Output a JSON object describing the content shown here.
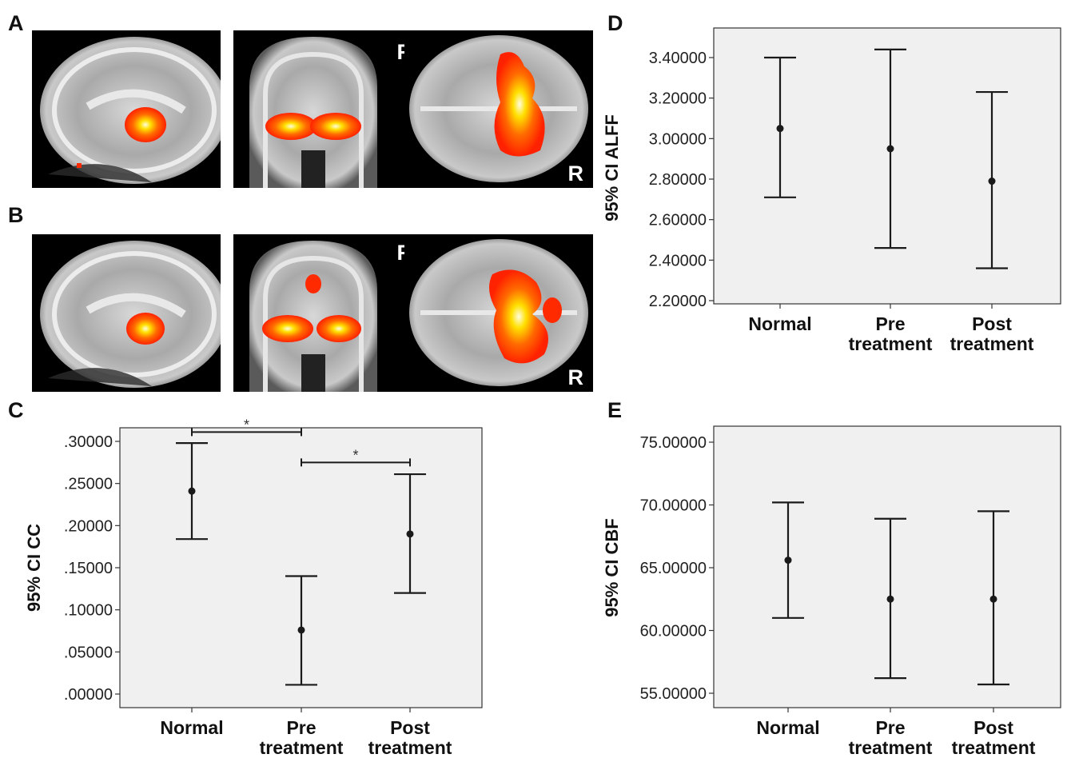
{
  "panels": {
    "A": {
      "letter": "A"
    },
    "B": {
      "letter": "B"
    },
    "C": {
      "letter": "C"
    },
    "D": {
      "letter": "D"
    },
    "E": {
      "letter": "E"
    }
  },
  "brain_images": {
    "right_marker": "R",
    "rows": [
      {
        "label": "A",
        "views": [
          "sagittal",
          "coronal",
          "axial"
        ]
      },
      {
        "label": "B",
        "views": [
          "sagittal",
          "coronal",
          "axial"
        ]
      }
    ]
  },
  "colors": {
    "plot_bg": "#f0f0f0",
    "ink": "#1a1a1a",
    "activation_red": "#ff2a00",
    "activation_yellow": "#ffe000"
  },
  "chart_data": [
    {
      "id": "C",
      "type": "errorbar",
      "ylabel": "95% CI CC",
      "categories": [
        [
          "Normal"
        ],
        [
          "Pre",
          "treatment"
        ],
        [
          "Post",
          "treatment"
        ]
      ],
      "means": [
        0.241,
        0.076,
        0.19
      ],
      "lower": [
        0.184,
        0.011,
        0.12
      ],
      "upper": [
        0.298,
        0.14,
        0.261
      ],
      "yticks": [
        0.0,
        0.05,
        0.1,
        0.15,
        0.2,
        0.25,
        0.3
      ],
      "ytick_labels": [
        ".00000",
        ".05000",
        ".10000",
        ".15000",
        ".20000",
        ".25000",
        ".30000"
      ],
      "significance": [
        {
          "from": 0,
          "to": 1,
          "label": "*",
          "level": 0.311
        },
        {
          "from": 1,
          "to": 2,
          "label": "*",
          "level": 0.275
        }
      ]
    },
    {
      "id": "D",
      "type": "errorbar",
      "ylabel": "95% CI ALFF",
      "categories": [
        [
          "Normal"
        ],
        [
          "Pre",
          "treatment"
        ],
        [
          "Post",
          "treatment"
        ]
      ],
      "means": [
        3.05,
        2.95,
        2.79
      ],
      "lower": [
        2.71,
        2.46,
        2.36
      ],
      "upper": [
        3.4,
        3.44,
        3.23
      ],
      "yticks": [
        2.2,
        2.4,
        2.6,
        2.8,
        3.0,
        3.2,
        3.4
      ],
      "ytick_labels": [
        "2.20000",
        "2.40000",
        "2.60000",
        "2.80000",
        "3.00000",
        "3.20000",
        "3.40000"
      ],
      "significance": []
    },
    {
      "id": "E",
      "type": "errorbar",
      "ylabel": "95% CI CBF",
      "categories": [
        [
          "Normal"
        ],
        [
          "Pre",
          "treatment"
        ],
        [
          "Post",
          "treatment"
        ]
      ],
      "means": [
        65.6,
        62.5,
        62.5
      ],
      "lower": [
        61.0,
        56.2,
        55.7
      ],
      "upper": [
        70.2,
        68.9,
        69.5
      ],
      "yticks": [
        55,
        60,
        65,
        70,
        75
      ],
      "ytick_labels": [
        "55.00000",
        "60.00000",
        "65.00000",
        "70.00000",
        "75.00000"
      ],
      "significance": []
    }
  ]
}
